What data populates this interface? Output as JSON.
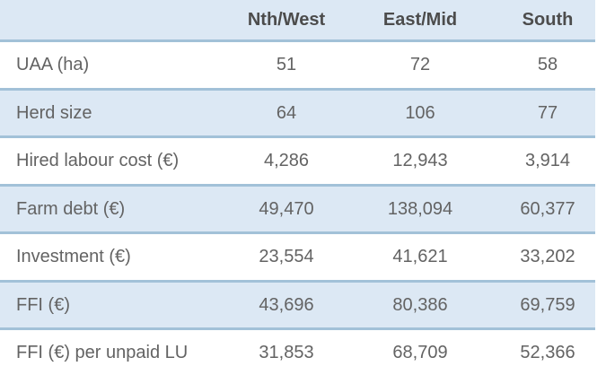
{
  "table": {
    "columns": [
      "",
      "Nth/West",
      "East/Mid",
      "South"
    ],
    "colors": {
      "band_fill": "#dce8f4",
      "border": "#a2c1d8",
      "body_text": "#636363",
      "header_text": "#4c4c4c"
    },
    "rows": [
      {
        "label": "UAA (ha)",
        "values": [
          "51",
          "72",
          "58"
        ]
      },
      {
        "label": "Herd size",
        "values": [
          "64",
          "106",
          "77"
        ]
      },
      {
        "label": "Hired labour cost (€)",
        "values": [
          "4,286",
          "12,943",
          "3,914"
        ]
      },
      {
        "label": "Farm debt (€)",
        "values": [
          "49,470",
          "138,094",
          "60,377"
        ]
      },
      {
        "label": "Investment (€)",
        "values": [
          "23,554",
          "41,621",
          "33,202"
        ]
      },
      {
        "label": "FFI (€)",
        "values": [
          "43,696",
          "80,386",
          "69,759"
        ]
      },
      {
        "label": "FFI (€) per unpaid LU",
        "values": [
          "31,853",
          "68,709",
          "52,366"
        ]
      }
    ]
  },
  "chart_data": {
    "type": "table",
    "title": "",
    "columns": [
      "",
      "Nth/West",
      "East/Mid",
      "South"
    ],
    "rows": [
      [
        "UAA (ha)",
        51,
        72,
        58
      ],
      [
        "Herd size",
        64,
        106,
        77
      ],
      [
        "Hired labour cost (€)",
        4286,
        12943,
        3914
      ],
      [
        "Farm debt (€)",
        49470,
        138094,
        60377
      ],
      [
        "Investment (€)",
        23554,
        41621,
        33202
      ],
      [
        "FFI (€)",
        43696,
        80386,
        69759
      ],
      [
        "FFI (€) per unpaid LU",
        31853,
        68709,
        52366
      ]
    ],
    "layout_hints": {
      "banded_rows": true,
      "header_shaded": true,
      "value_alignment": "center",
      "grid": "horizontal-lines-only"
    }
  }
}
